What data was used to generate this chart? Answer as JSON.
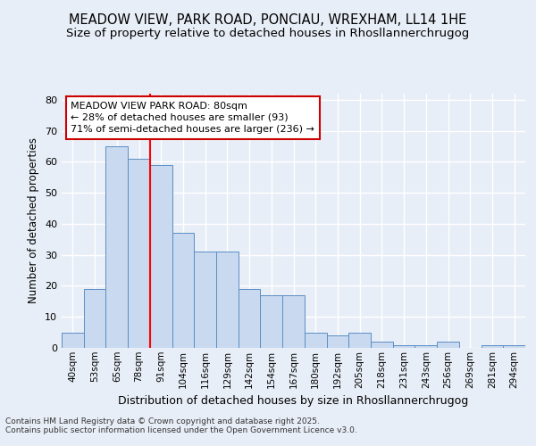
{
  "title1": "MEADOW VIEW, PARK ROAD, PONCIAU, WREXHAM, LL14 1HE",
  "title2": "Size of property relative to detached houses in Rhosllannerchrugog",
  "xlabel": "Distribution of detached houses by size in Rhosllannerchrugog",
  "ylabel": "Number of detached properties",
  "bar_cats": [
    "40sqm",
    "53sqm",
    "65sqm",
    "78sqm",
    "91sqm",
    "104sqm",
    "116sqm",
    "129sqm",
    "142sqm",
    "154sqm",
    "167sqm",
    "180sqm",
    "192sqm",
    "205sqm",
    "218sqm",
    "231sqm",
    "243sqm",
    "256sqm",
    "269sqm",
    "281sqm",
    "294sqm"
  ],
  "values": [
    5,
    19,
    65,
    61,
    59,
    37,
    31,
    31,
    19,
    17,
    17,
    5,
    4,
    5,
    2,
    1,
    1,
    2,
    0,
    1,
    1
  ],
  "bar_color": "#c9d9ef",
  "bar_edge_color": "#5b8ec4",
  "red_line_x": 3.5,
  "annotation_text": "MEADOW VIEW PARK ROAD: 80sqm\n← 28% of detached houses are smaller (93)\n71% of semi-detached houses are larger (236) →",
  "annotation_box_color": "#ffffff",
  "annotation_box_edge": "#cc0000",
  "ylim": [
    0,
    82
  ],
  "yticks": [
    0,
    10,
    20,
    30,
    40,
    50,
    60,
    70,
    80
  ],
  "footer": "Contains HM Land Registry data © Crown copyright and database right 2025.\nContains public sector information licensed under the Open Government Licence v3.0.",
  "background_color": "#e8eef7",
  "plot_background": "#e8eef7",
  "grid_color": "#ffffff",
  "title_fontsize": 10.5,
  "subtitle_fontsize": 9.5
}
